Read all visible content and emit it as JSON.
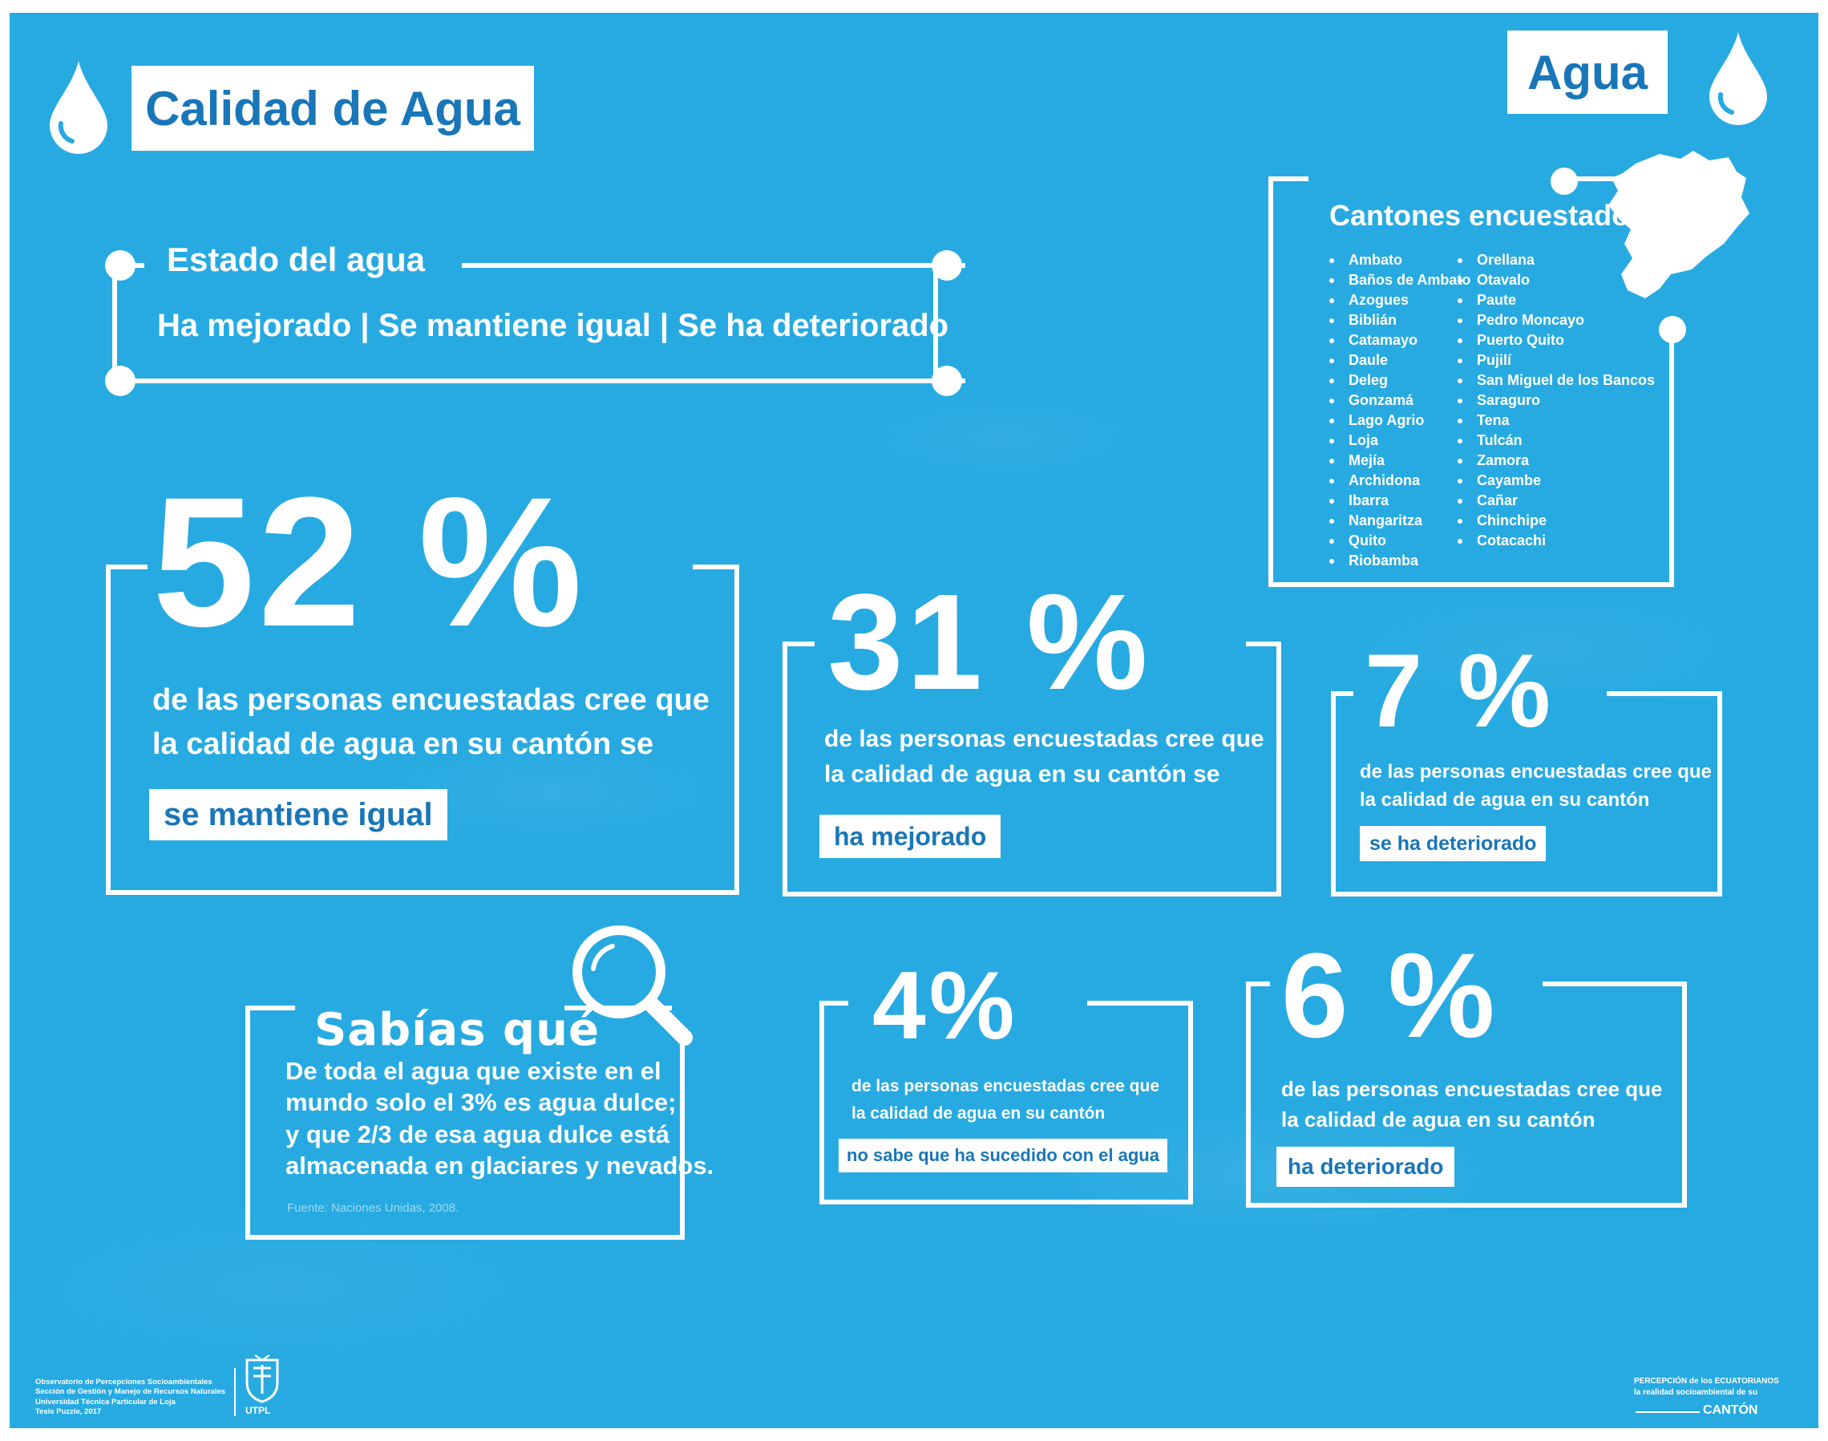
{
  "header": {
    "title": "Calidad de Agua",
    "topic_badge": "Agua",
    "drop_icon_left": "water-drop-icon",
    "drop_icon_right": "water-drop-icon"
  },
  "estado": {
    "heading": "Estado del agua",
    "options": "Ha mejorado | Se mantiene igual | Se ha deteriorado"
  },
  "cantones": {
    "heading": "Cantones encuestados",
    "map_icon": "ecuador-map-icon",
    "col1": [
      "Ambato",
      "Baños de Ambato",
      "Azogues",
      "Biblián",
      "Catamayo",
      "Daule",
      "Deleg",
      "Gonzamá",
      "Lago Agrio",
      "Loja",
      "Mejía",
      "Archidona",
      "Ibarra",
      "Nangaritza",
      "Quito",
      "Riobamba"
    ],
    "col2": [
      "Orellana",
      "Otavalo",
      "Paute",
      "Pedro Moncayo",
      "Puerto Quito",
      "Pujilí",
      "San Miguel de los Bancos",
      "Saraguro",
      "Tena",
      "Tulcán",
      "Zamora",
      "Cayambe",
      "Cañar",
      "Chinchipe",
      "Cotacachi"
    ]
  },
  "stats": [
    {
      "value": "52 %",
      "line1": "de las personas encuestadas cree que",
      "line2": "la calidad de agua en su cantón se",
      "label": "se mantiene igual"
    },
    {
      "value": "31 %",
      "line1": "de las personas encuestadas cree que",
      "line2": "la calidad de agua en su cantón se",
      "label": "ha mejorado"
    },
    {
      "value": "7 %",
      "line1": "de las personas encuestadas cree que",
      "line2": "la calidad de agua en su cantón",
      "label": "se ha deteriorado"
    },
    {
      "value": "4%",
      "line1": "de las personas encuestadas cree que",
      "line2": "la calidad de agua en su cantón",
      "label": "no sabe que ha sucedido con el agua"
    },
    {
      "value": "6 %",
      "line1": "de las personas encuestadas cree que",
      "line2": "la calidad de agua en su cantón",
      "label": "ha deteriorado"
    }
  ],
  "sabias": {
    "heading": "Sabías qué",
    "icon": "magnifier-icon",
    "lines": [
      "De toda el agua que existe en el",
      "mundo solo el 3% es agua dulce;",
      "y que 2/3 de esa agua dulce está",
      "almacenada en glaciares y nevados."
    ],
    "source": "Fuente:  Naciones Unidas, 2008."
  },
  "footer": {
    "credits": [
      "Observatorio de Percepciones Socioambientales",
      "Sección de Gestión y Manejo de Recursos Naturales",
      "Universidad Técnica Particular de Loja",
      "Tesis Puzzle, 2017"
    ],
    "logo_text": "UTPL",
    "brand_line1": "PERCEPCIÓN de los ECUATORIANOS",
    "brand_line2": "la realidad socioambiental de su",
    "brand_line3": "CANTÓN"
  }
}
